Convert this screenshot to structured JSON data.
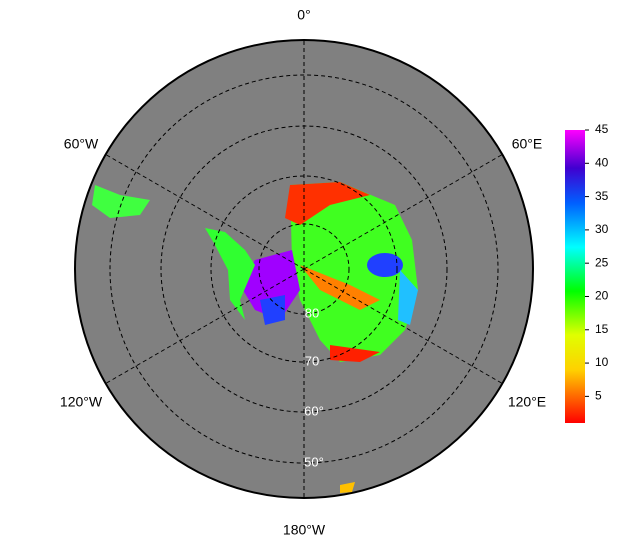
{
  "map": {
    "longitude_labels": [
      "0°",
      "60°E",
      "120°E",
      "180°W",
      "120°W",
      "60°W"
    ],
    "latitude_labels": [
      "80",
      "70",
      "60°",
      "50°"
    ],
    "colorbar": {
      "range": [
        1,
        45
      ],
      "ticks": [
        5,
        10,
        15,
        20,
        25,
        30,
        35,
        40,
        45
      ]
    }
  }
}
